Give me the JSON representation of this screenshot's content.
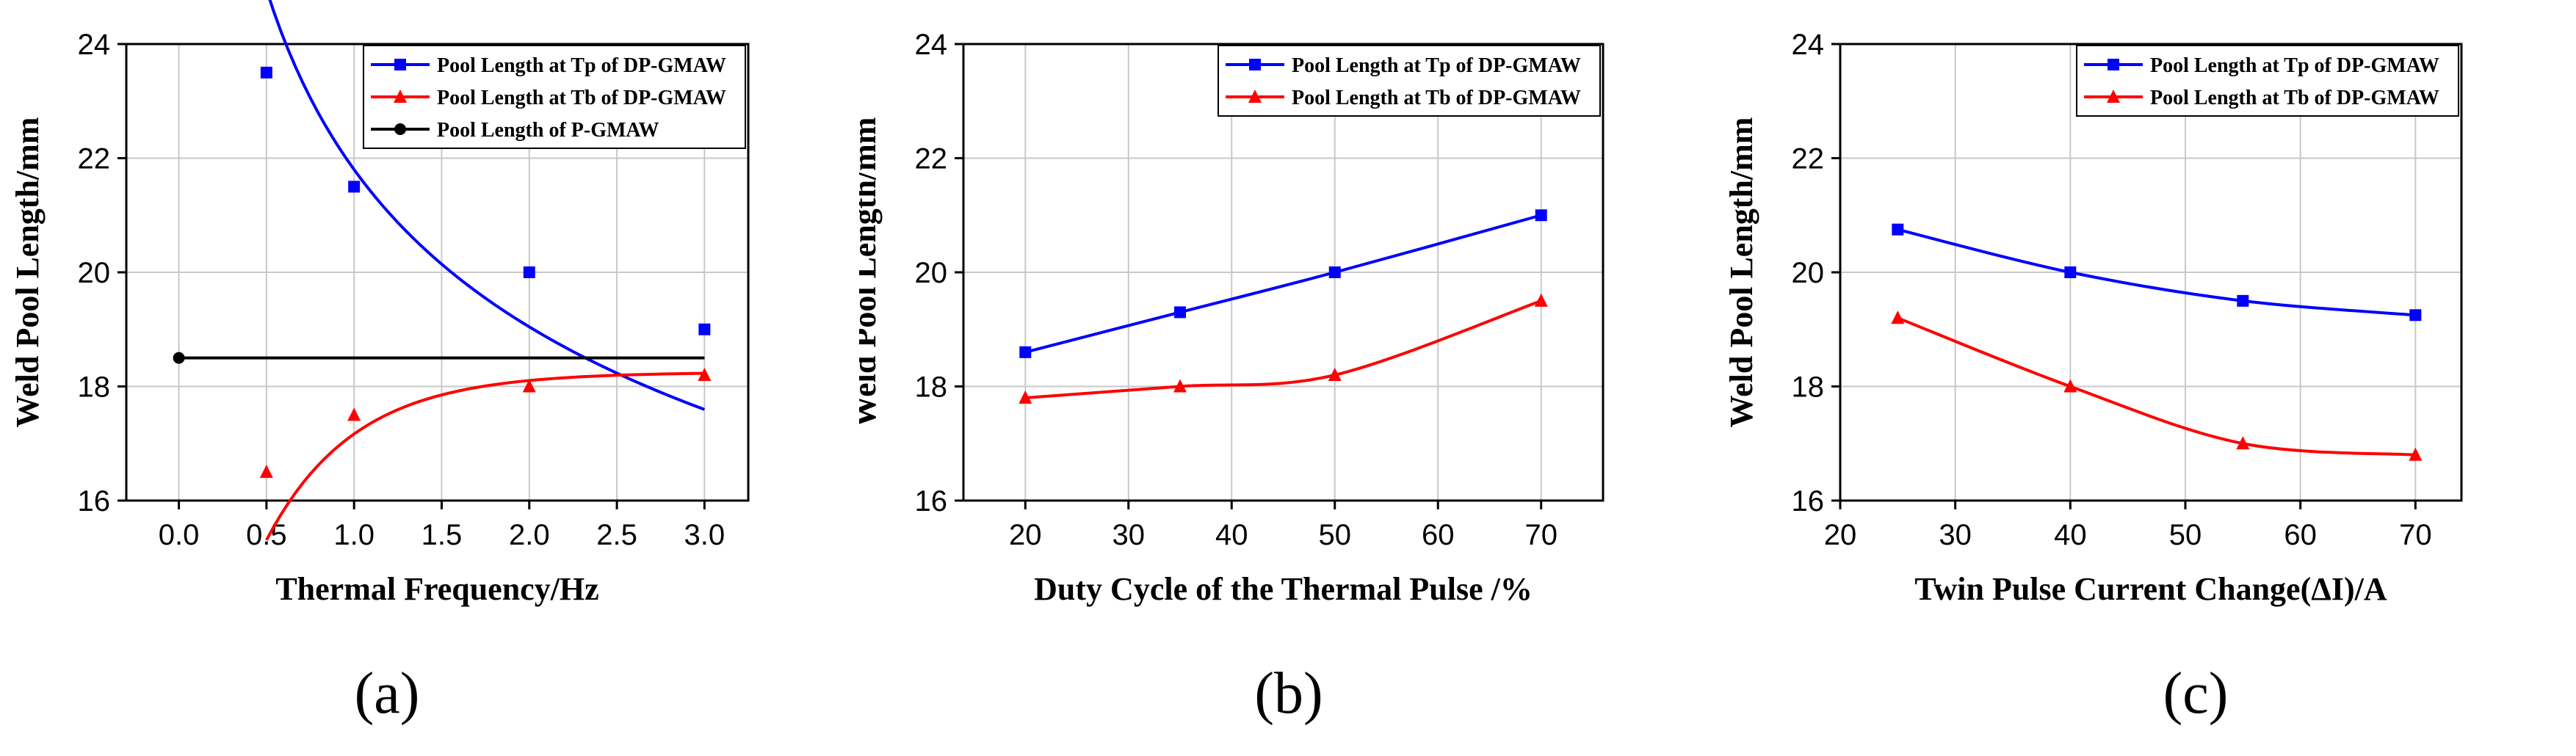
{
  "chart_data": [
    {
      "type": "line",
      "panel_label": "(a)",
      "xlabel": "Thermal Frequency/Hz",
      "ylabel": "Weld Pool Length/mm",
      "xlim": [
        -0.3,
        3.25
      ],
      "ylim": [
        16,
        24
      ],
      "xticks": [
        0.0,
        0.5,
        1.0,
        1.5,
        2.0,
        2.5,
        3.0
      ],
      "xtick_labels": [
        "0.0",
        "0.5",
        "1.0",
        "1.5",
        "2.0",
        "2.5",
        "3.0"
      ],
      "yticks": [
        16,
        18,
        20,
        22,
        24
      ],
      "ytick_labels": [
        "16",
        "18",
        "20",
        "22",
        "24"
      ],
      "grid": true,
      "legend_position": "top-right",
      "series": [
        {
          "name": "Pool Length at Tp of DP-GMAW",
          "color": "#0000ff",
          "marker": "square",
          "x": [
            0.5,
            1.0,
            2.0,
            3.0
          ],
          "values": [
            23.5,
            21.5,
            20.0,
            19.0
          ],
          "fit": "power",
          "fit_a": 21.8,
          "fit_b": -0.195
        },
        {
          "name": "Pool Length at Tb of DP-GMAW",
          "color": "#ff0000",
          "marker": "triangle",
          "x": [
            0.5,
            1.0,
            2.0,
            3.0
          ],
          "values": [
            16.5,
            17.5,
            18.0,
            18.2
          ],
          "fit": "saturation",
          "fit_c": 18.25,
          "fit_a": 8.0,
          "fit_k": 2.0
        },
        {
          "name": "Pool Length of P-GMAW",
          "color": "#000000",
          "marker": "circle",
          "x": [
            0.0,
            3.0
          ],
          "values": [
            18.5,
            18.5
          ],
          "marker_indices": [
            0
          ]
        }
      ]
    },
    {
      "type": "line",
      "panel_label": "(b)",
      "xlabel": "Duty Cycle of the Thermal Pulse /%",
      "ylabel": "Weld Pool Length/mm",
      "xlim": [
        14,
        76
      ],
      "ylim": [
        16,
        24
      ],
      "xticks": [
        20,
        30,
        40,
        50,
        60,
        70
      ],
      "xtick_labels": [
        "20",
        "30",
        "40",
        "50",
        "60",
        "70"
      ],
      "yticks": [
        16,
        18,
        20,
        22,
        24
      ],
      "ytick_labels": [
        "16",
        "18",
        "20",
        "22",
        "24"
      ],
      "grid": true,
      "legend_position": "top-right",
      "series": [
        {
          "name": "Pool Length at Tp of DP-GMAW",
          "color": "#0000ff",
          "marker": "square",
          "x": [
            20,
            35,
            50,
            70
          ],
          "values": [
            18.6,
            19.3,
            20.0,
            21.0
          ],
          "fit": "smooth"
        },
        {
          "name": "Pool Length at Tb of DP-GMAW",
          "color": "#ff0000",
          "marker": "triangle",
          "x": [
            20,
            35,
            50,
            70
          ],
          "values": [
            17.8,
            18.0,
            18.2,
            19.5
          ],
          "fit": "smooth"
        }
      ]
    },
    {
      "type": "line",
      "panel_label": "(c)",
      "xlabel": "Twin Pulse Current Change(ΔI)/A",
      "ylabel": "Weld Pool Length/mm",
      "xlim": [
        20,
        74
      ],
      "ylim": [
        16,
        24
      ],
      "xticks": [
        20,
        30,
        40,
        50,
        60,
        70
      ],
      "xtick_labels": [
        "20",
        "30",
        "40",
        "50",
        "60",
        "70"
      ],
      "yticks": [
        16,
        18,
        20,
        22,
        24
      ],
      "ytick_labels": [
        "16",
        "18",
        "20",
        "22",
        "24"
      ],
      "grid": true,
      "legend_position": "top-right",
      "series": [
        {
          "name": "Pool Length at Tp of DP-GMAW",
          "color": "#0000ff",
          "marker": "square",
          "x": [
            25,
            40,
            55,
            70
          ],
          "values": [
            20.75,
            20.0,
            19.5,
            19.25
          ],
          "fit": "smooth"
        },
        {
          "name": "Pool Length at Tb of DP-GMAW",
          "color": "#ff0000",
          "marker": "triangle",
          "x": [
            25,
            40,
            55,
            70
          ],
          "values": [
            19.2,
            18.0,
            17.0,
            16.8
          ],
          "fit": "smooth"
        }
      ]
    }
  ]
}
